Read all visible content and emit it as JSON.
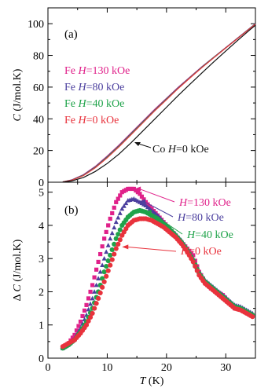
{
  "chart_data": [
    {
      "panel": "(a)",
      "type": "line",
      "xlim": [
        0,
        35
      ],
      "ylim": [
        0,
        110
      ],
      "xticks": [
        0,
        10,
        20,
        30
      ],
      "yticks": [
        0,
        20,
        40,
        60,
        80,
        100
      ],
      "ylabel": "C (J/mol.K)",
      "ylabel_parts": {
        "italic": "C",
        "rest": " (J/mol.K)"
      },
      "grid": false,
      "legend": [
        {
          "text": "Fe H=130 kOe",
          "color": "#e0218a"
        },
        {
          "text": "Fe H=80 kOe",
          "color": "#4b3f9e"
        },
        {
          "text": "Fe H=40 kOe",
          "color": "#1fa34a"
        },
        {
          "text": "Fe H=0 kOe",
          "color": "#e8323c"
        }
      ],
      "annotation": "Co H=0 kOe",
      "series": [
        {
          "name": "Fe H=130 kOe",
          "color": "#e0218a",
          "x": [
            2.5,
            4,
            6,
            8,
            10,
            12,
            14,
            16,
            18,
            20,
            22,
            24,
            26,
            28,
            30,
            32,
            34,
            35
          ],
          "y": [
            0.2,
            1.5,
            4.8,
            10,
            16.5,
            23.5,
            31,
            38.5,
            46,
            53,
            60,
            66.5,
            73,
            79,
            85,
            91,
            97,
            100
          ]
        },
        {
          "name": "Fe H=80 kOe",
          "color": "#4b3f9e",
          "x": [
            2.5,
            4,
            6,
            8,
            10,
            12,
            14,
            16,
            18,
            20,
            22,
            24,
            26,
            28,
            30,
            32,
            34,
            35
          ],
          "y": [
            0.2,
            1.4,
            4.6,
            9.7,
            16.1,
            23.1,
            30.6,
            38.1,
            45.6,
            52.7,
            59.7,
            66.3,
            72.8,
            78.9,
            84.9,
            90.9,
            96.9,
            99.9
          ]
        },
        {
          "name": "Fe H=40 kOe",
          "color": "#1fa34a",
          "x": [
            2.5,
            4,
            6,
            8,
            10,
            12,
            14,
            16,
            18,
            20,
            22,
            24,
            26,
            28,
            30,
            32,
            34,
            35
          ],
          "y": [
            0.2,
            1.3,
            4.4,
            9.4,
            15.8,
            22.8,
            30.3,
            37.8,
            45.3,
            52.4,
            59.4,
            66.1,
            72.6,
            78.8,
            84.8,
            90.8,
            96.8,
            99.8
          ]
        },
        {
          "name": "Fe H=0 kOe",
          "color": "#e8323c",
          "x": [
            2.5,
            4,
            6,
            8,
            10,
            12,
            14,
            16,
            18,
            20,
            22,
            24,
            26,
            28,
            30,
            32,
            34,
            35
          ],
          "y": [
            0.2,
            1.2,
            4.2,
            9.1,
            15.4,
            22.4,
            29.9,
            37.4,
            45,
            52.1,
            59.2,
            65.9,
            72.4,
            78.6,
            84.7,
            90.7,
            96.7,
            99.7
          ]
        },
        {
          "name": "Co H=0 kOe",
          "color": "#111111",
          "x": [
            2.5,
            4,
            6,
            8,
            10,
            12,
            14,
            16,
            18,
            20,
            22,
            24,
            26,
            28,
            30,
            32,
            34,
            35
          ],
          "y": [
            0.1,
            0.8,
            3,
            6.8,
            11.8,
            17.8,
            24.8,
            32.3,
            39.8,
            47.3,
            54.8,
            62,
            69,
            76,
            82.8,
            89.5,
            96,
            99
          ]
        }
      ]
    },
    {
      "panel": "(b)",
      "type": "scatter",
      "xlim": [
        0,
        35
      ],
      "ylim": [
        0,
        5.3
      ],
      "xticks": [
        0,
        10,
        20,
        30
      ],
      "yticks": [
        0,
        1,
        2,
        3,
        4,
        5
      ],
      "xlabel": "T (K)",
      "xlabel_parts": {
        "italic": "T",
        "rest": " (K)"
      },
      "ylabel": "Δ C (J/mol.K)",
      "ylabel_parts": {
        "italic": "C",
        "pre": "Δ ",
        "rest": " (J/mol.K)"
      },
      "grid": false,
      "annotations": [
        {
          "text": "H=130 kOe",
          "color": "#e0218a"
        },
        {
          "text": "H=80 kOe",
          "color": "#4b3f9e"
        },
        {
          "text": "H=40 kOe",
          "color": "#1fa34a"
        },
        {
          "text": "H=0 kOe",
          "color": "#e8323c"
        }
      ],
      "series": [
        {
          "name": "H=130 kOe",
          "color": "#e0218a",
          "marker": "square",
          "x": [
            2.5,
            3.5,
            4.5,
            5.5,
            6.5,
            7.5,
            8.5,
            9.5,
            10.5,
            11.5,
            12.5,
            13.5,
            14.5,
            15.5,
            16.5,
            17.5,
            18.5,
            19.5,
            20.5,
            21.5,
            22.5,
            23.5,
            24.5,
            25.5,
            26.5,
            27.5,
            28.5,
            29.5,
            30.5,
            31.5,
            32.5,
            33.5,
            34.5
          ],
          "y": [
            0.3,
            0.45,
            0.7,
            1.1,
            1.6,
            2.2,
            2.9,
            3.6,
            4.2,
            4.7,
            5.0,
            5.1,
            5.1,
            4.95,
            4.7,
            4.5,
            4.3,
            4.1,
            3.9,
            3.7,
            3.5,
            3.3,
            3.1,
            2.6,
            2.3,
            2.1,
            2.0,
            1.9,
            1.7,
            1.5,
            1.5,
            1.4,
            1.3
          ]
        },
        {
          "name": "H=80 kOe",
          "color": "#4b3f9e",
          "marker": "triangle",
          "x": [
            2.5,
            3.5,
            4.5,
            5.5,
            6.5,
            7.5,
            8.5,
            9.5,
            10.5,
            11.5,
            12.5,
            13.5,
            14.5,
            15.5,
            16.5,
            17.5,
            18.5,
            19.5,
            20.5,
            21.5,
            22.5,
            23.5,
            24.5,
            25.5,
            26.5,
            27.5,
            28.5,
            29.5,
            30.5,
            31.5,
            32.5,
            33.5,
            34.5
          ],
          "y": [
            0.3,
            0.42,
            0.6,
            0.9,
            1.3,
            1.8,
            2.4,
            3.0,
            3.6,
            4.1,
            4.5,
            4.75,
            4.8,
            4.7,
            4.6,
            4.45,
            4.3,
            4.1,
            3.9,
            3.75,
            3.55,
            3.3,
            3.0,
            2.6,
            2.35,
            2.2,
            2.05,
            1.9,
            1.75,
            1.6,
            1.55,
            1.45,
            1.35
          ]
        },
        {
          "name": "H=40 kOe",
          "color": "#1fa34a",
          "marker": "circle",
          "x": [
            2.5,
            3.5,
            4.5,
            5.5,
            6.5,
            7.5,
            8.5,
            9.5,
            10.5,
            11.5,
            12.5,
            13.5,
            14.5,
            15.5,
            16.5,
            17.5,
            18.5,
            19.5,
            20.5,
            21.5,
            22.5,
            23.5,
            24.5,
            25.5,
            26.5,
            27.5,
            28.5,
            29.5,
            30.5,
            31.5,
            32.5,
            33.5,
            34.5
          ],
          "y": [
            0.3,
            0.4,
            0.55,
            0.8,
            1.1,
            1.5,
            2.0,
            2.6,
            3.1,
            3.6,
            4.0,
            4.25,
            4.4,
            4.45,
            4.4,
            4.3,
            4.2,
            4.05,
            3.9,
            3.7,
            3.5,
            3.25,
            2.95,
            2.55,
            2.3,
            2.15,
            2.0,
            1.85,
            1.7,
            1.55,
            1.5,
            1.4,
            1.3
          ]
        },
        {
          "name": "H=0 kOe",
          "color": "#e8323c",
          "marker": "circle",
          "x": [
            2.5,
            3.5,
            4.5,
            5.5,
            6.5,
            7.5,
            8.5,
            9.5,
            10.5,
            11.5,
            12.5,
            13.5,
            14.5,
            15.5,
            16.5,
            17.5,
            18.5,
            19.5,
            20.5,
            21.5,
            22.5,
            23.5,
            24.5,
            25.5,
            26.5,
            27.5,
            28.5,
            29.5,
            30.5,
            31.5,
            32.5,
            33.5,
            34.5
          ],
          "y": [
            0.35,
            0.45,
            0.55,
            0.75,
            1.0,
            1.35,
            1.8,
            2.3,
            2.8,
            3.3,
            3.7,
            4.0,
            4.15,
            4.2,
            4.2,
            4.15,
            4.05,
            3.95,
            3.8,
            3.65,
            3.45,
            3.2,
            2.9,
            2.5,
            2.25,
            2.1,
            1.95,
            1.8,
            1.65,
            1.5,
            1.45,
            1.35,
            1.25
          ]
        }
      ]
    }
  ]
}
